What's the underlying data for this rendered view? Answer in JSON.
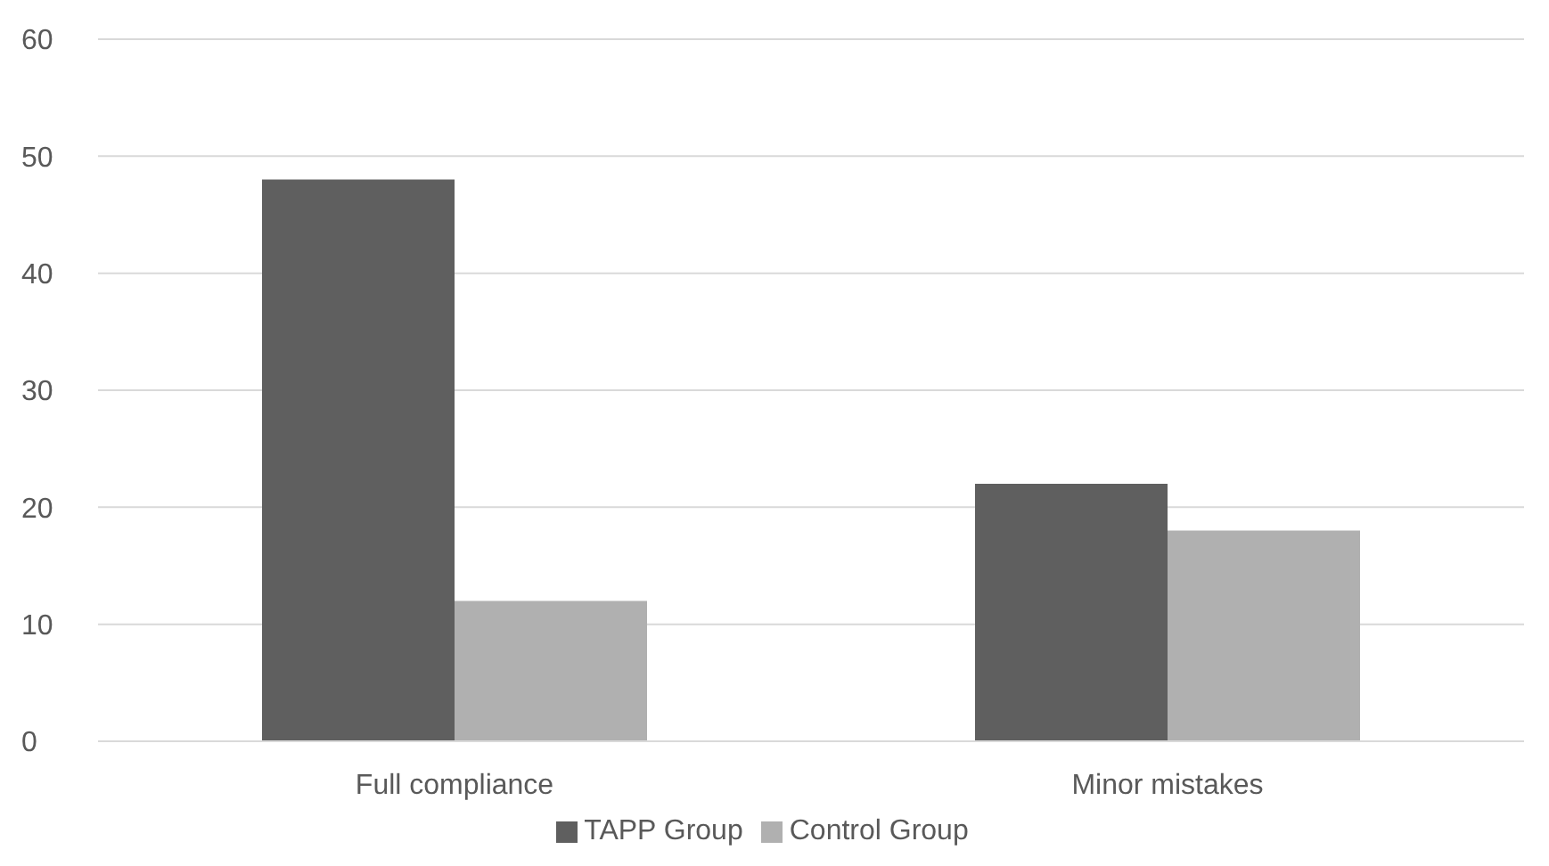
{
  "chart_data": {
    "type": "bar",
    "categories": [
      "Full compliance",
      "Minor mistakes"
    ],
    "series": [
      {
        "name": "TAPP Group",
        "color": "#5f5f5f",
        "values": [
          48,
          22
        ]
      },
      {
        "name": "Control Group",
        "color": "#b0b0b0",
        "values": [
          12,
          18
        ]
      }
    ],
    "ylim": [
      0,
      60
    ],
    "yticks": [
      0,
      10,
      20,
      30,
      40,
      50,
      60
    ],
    "grid": "y",
    "legend": "bottom"
  }
}
